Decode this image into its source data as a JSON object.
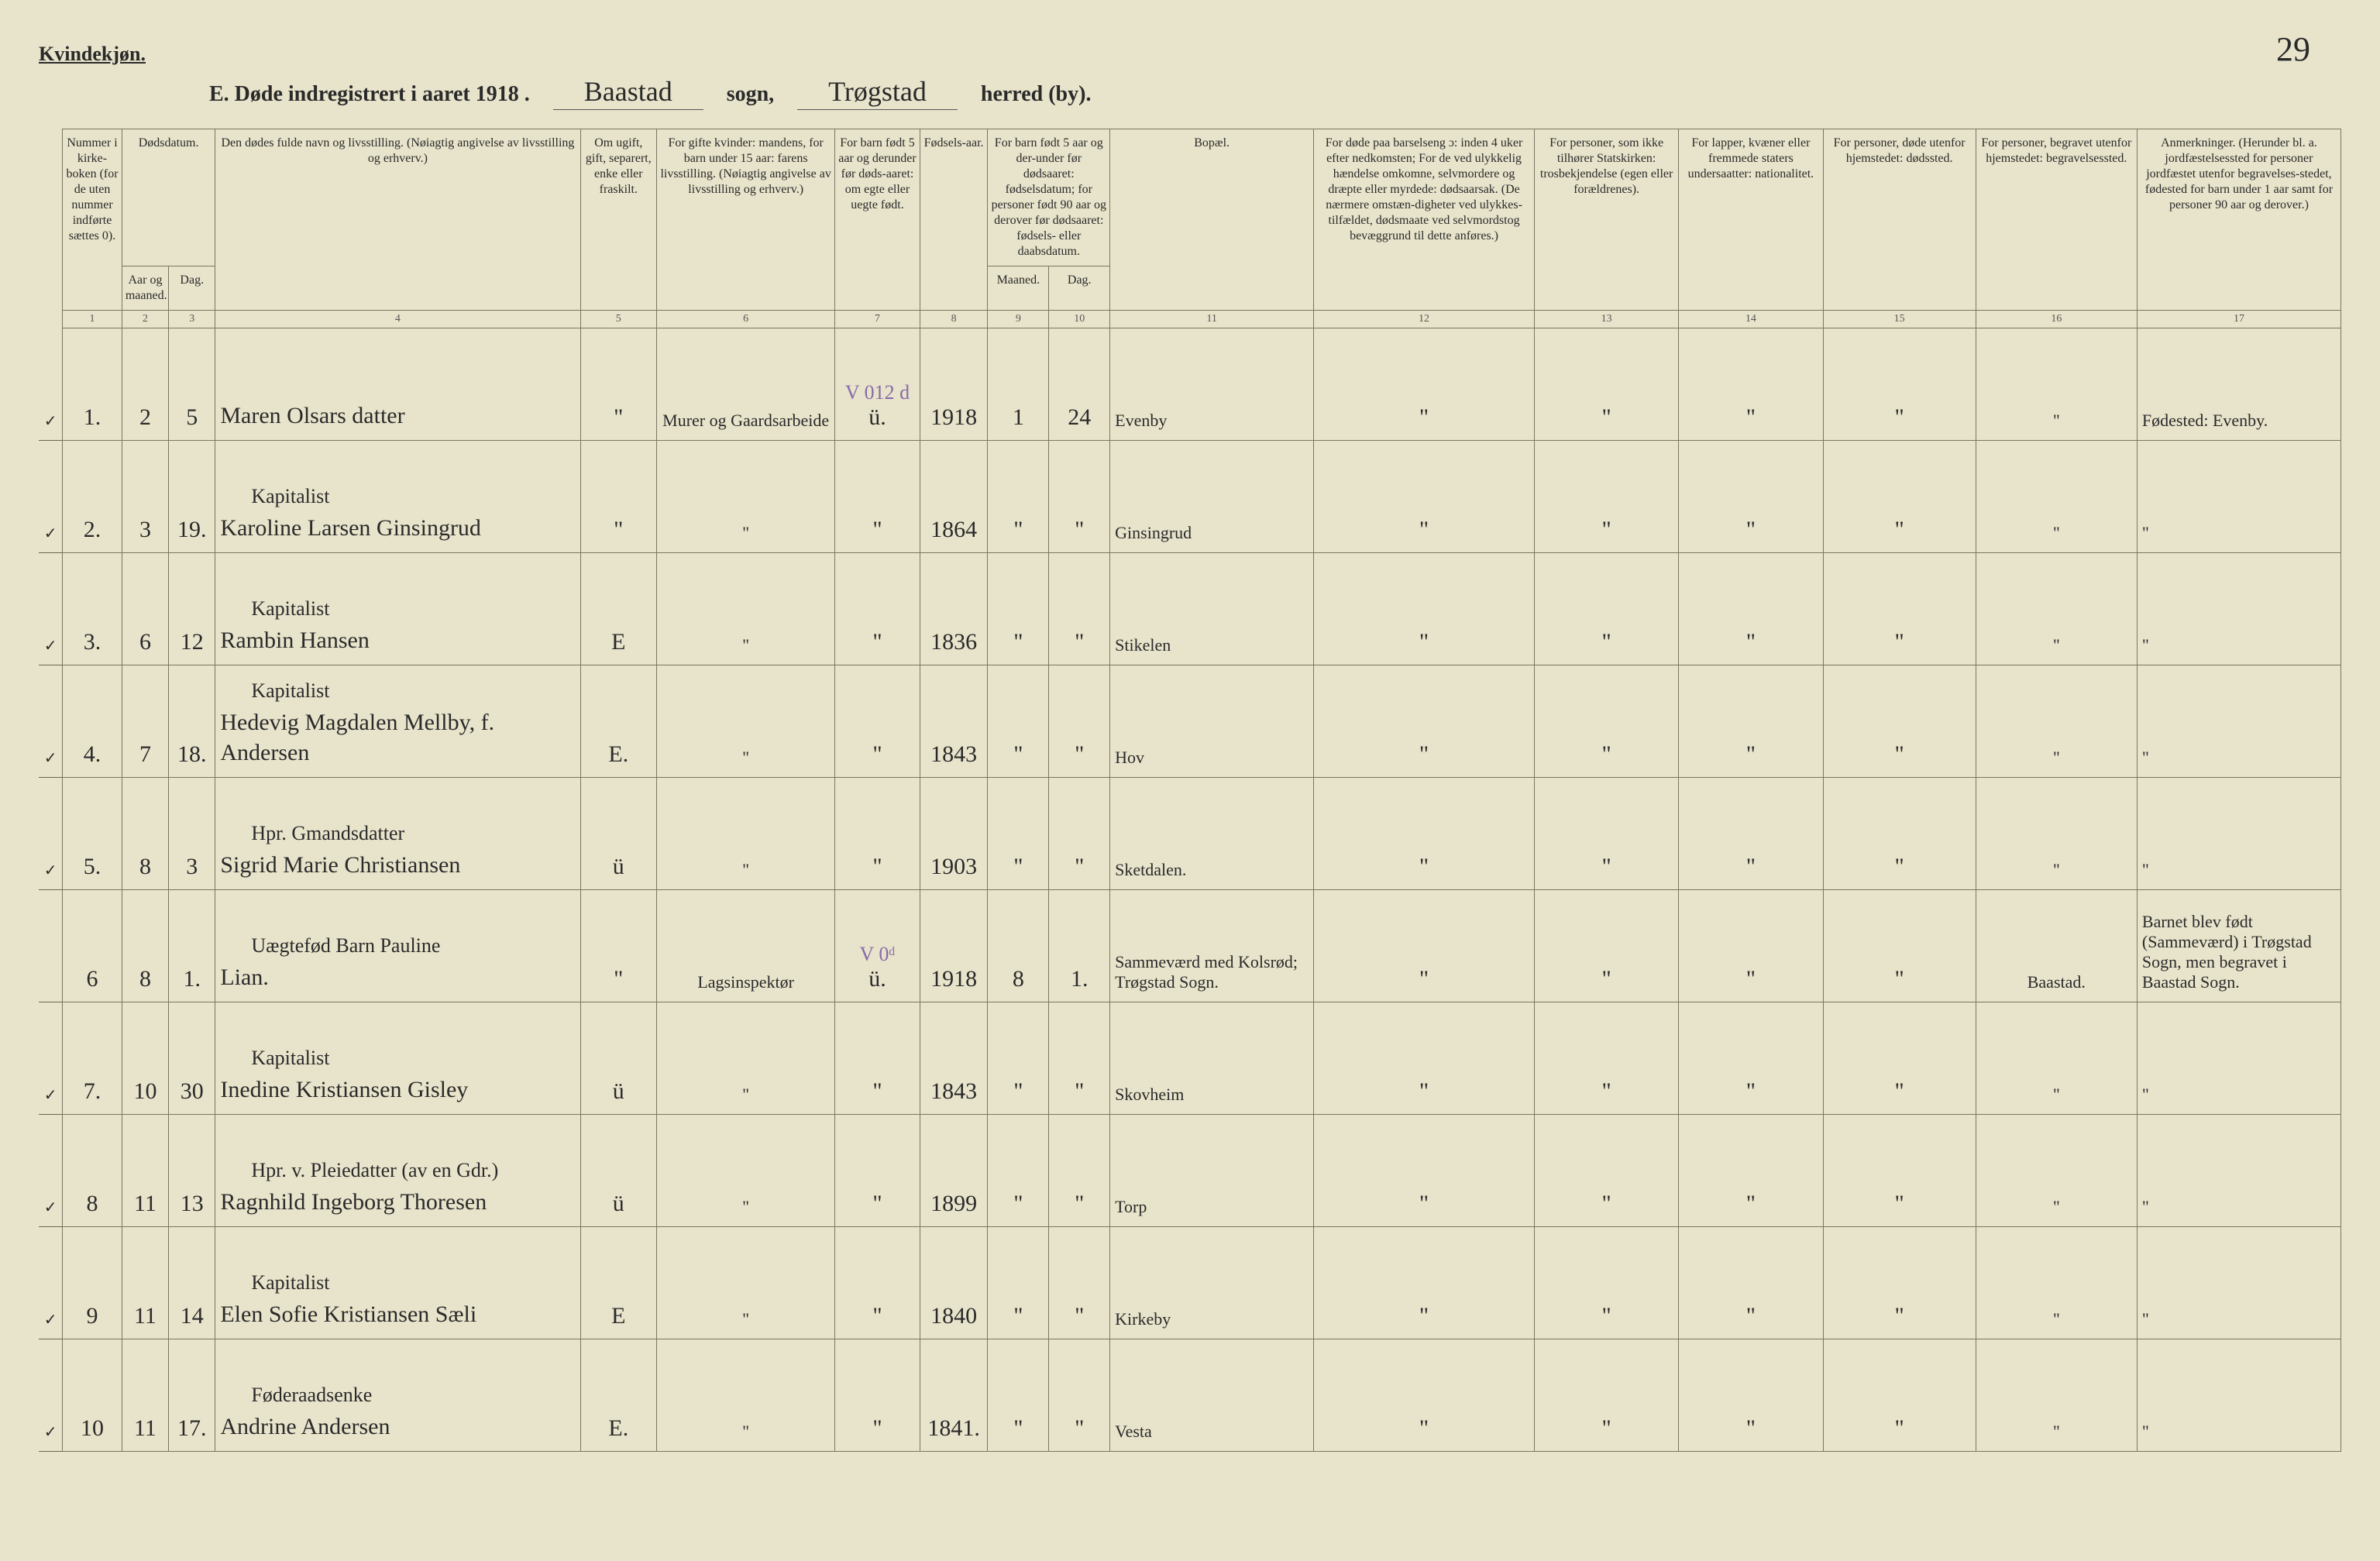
{
  "page_number": "29",
  "gender_heading": "Kvindekjøn.",
  "title": {
    "prefix": "E.  Døde indregistrert i aaret 191",
    "year_suffix": "8",
    "sogn_value": "Baastad",
    "sogn_label": "sogn,",
    "herred_value": "Trøgstad",
    "herred_label": "herred (by)."
  },
  "headers": {
    "c1": "Nummer i kirke-boken (for de uten nummer indførte sættes 0).",
    "c2_group": "Dødsdatum.",
    "c2a": "Aar og maaned.",
    "c2b": "Dag.",
    "c4": "Den dødes fulde navn og livsstilling. (Nøiagtig angivelse av livsstilling og erhverv.)",
    "c5": "Om ugift, gift, separert, enke eller fraskilt.",
    "c6": "For gifte kvinder: mandens, for barn under 15 aar: farens livsstilling. (Nøiagtig angivelse av livsstilling og erhverv.)",
    "c7": "For barn født 5 aar og derunder før døds-aaret: om egte eller uegte født.",
    "c8": "Fødsels-aar.",
    "c9_group": "For barn født 5 aar og der-under før dødsaaret: fødselsdatum; for personer født 90 aar og derover før dødsaaret: fødsels- eller daabsdatum.",
    "c9a": "Maaned.",
    "c9b": "Dag.",
    "c11": "Bopæl.",
    "c12": "For døde paa barselseng ɔ: inden 4 uker efter nedkomsten; For de ved ulykkelig hændelse omkomne, selvmordere og dræpte eller myrdede: dødsaarsak. (De nærmere omstæn-digheter ved ulykkes-tilfældet, dødsmaate ved selvmordstog bevæggrund til dette anføres.)",
    "c13": "For personer, som ikke tilhører Statskirken: trosbekjendelse (egen eller forældrenes).",
    "c14": "For lapper, kvæner eller fremmede staters undersaatter: nationalitet.",
    "c15": "For personer, døde utenfor hjemstedet: dødssted.",
    "c16": "For personer, begravet utenfor hjemstedet: begravelsessted.",
    "c17": "Anmerkninger. (Herunder bl. a. jordfæstelsessted for personer jordfæstet utenfor begravelses-stedet, fødested for barn under 1 aar samt for personer 90 aar og derover.)"
  },
  "colnums": [
    "1",
    "2",
    "3",
    "4",
    "5",
    "6",
    "7",
    "8",
    "9",
    "10",
    "11",
    "12",
    "13",
    "14",
    "15",
    "16",
    "17"
  ],
  "rows": [
    {
      "tick": "✓",
      "n": "1.",
      "m": "2",
      "d": "5",
      "occ": "",
      "name": "Maren Olsars datter",
      "ms": "\"",
      "c6": "Murer og Gaardsarbeide",
      "c7": "ü.",
      "y": "1918",
      "m9": "1",
      "d10": "24",
      "bopel": "Evenby",
      "c17": "Fødested: Evenby.",
      "purple": "V 012 d"
    },
    {
      "tick": "✓",
      "n": "2.",
      "m": "3",
      "d": "19.",
      "occ": "Kapitalist",
      "name": "Karoline Larsen Ginsingrud",
      "ms": "\"",
      "c6": "\"",
      "c7": "\"",
      "y": "1864",
      "m9": "\"",
      "d10": "\"",
      "bopel": "Ginsingrud",
      "c17": "\""
    },
    {
      "tick": "✓",
      "n": "3.",
      "m": "6",
      "d": "12",
      "occ": "Kapitalist",
      "name": "Rambin Hansen",
      "ms": "E",
      "c6": "\"",
      "c7": "\"",
      "y": "1836",
      "m9": "\"",
      "d10": "\"",
      "bopel": "Stikelen",
      "c17": "\""
    },
    {
      "tick": "✓",
      "n": "4.",
      "m": "7",
      "d": "18.",
      "occ": "Kapitalist",
      "name": "Hedevig Magdalen Mellby, f. Andersen",
      "ms": "E.",
      "c6": "\"",
      "c7": "\"",
      "y": "1843",
      "m9": "\"",
      "d10": "\"",
      "bopel": "Hov",
      "c17": "\""
    },
    {
      "tick": "✓",
      "n": "5.",
      "m": "8",
      "d": "3",
      "occ": "Hpr. Gmandsdatter",
      "name": "Sigrid Marie Christiansen",
      "ms": "ü",
      "c6": "\"",
      "c7": "\"",
      "y": "1903",
      "m9": "\"",
      "d10": "\"",
      "bopel": "Sketdalen.",
      "c17": "\""
    },
    {
      "tick": "",
      "n": "6",
      "m": "8",
      "d": "1.",
      "occ": "Uægtefød Barn Pauline",
      "name": "Lian.",
      "ms": "\"",
      "c6": "Lagsinspektør",
      "c7": "ü.",
      "y": "1918",
      "m9": "8",
      "d10": "1.",
      "bopel": "Sammeværd med Kolsrød; Trøgstad Sogn.",
      "c16": "Baastad.",
      "c17": "Barnet blev født (Sammeværd) i Trøgstad Sogn, men begravet i Baastad Sogn.",
      "purple": "V 0ᵈ"
    },
    {
      "tick": "✓",
      "n": "7.",
      "m": "10",
      "d": "30",
      "occ": "Kapitalist",
      "name": "Inedine Kristiansen Gisley",
      "ms": "ü",
      "c6": "\"",
      "c7": "\"",
      "y": "1843",
      "m9": "\"",
      "d10": "\"",
      "bopel": "Skovheim",
      "c17": "\""
    },
    {
      "tick": "✓",
      "n": "8",
      "m": "11",
      "d": "13",
      "occ": "Hpr. v. Pleiedatter (av en Gdr.)",
      "name": "Ragnhild Ingeborg Thoresen",
      "ms": "ü",
      "c6": "\"",
      "c7": "\"",
      "y": "1899",
      "m9": "\"",
      "d10": "\"",
      "bopel": "Torp",
      "c17": "\""
    },
    {
      "tick": "✓",
      "n": "9",
      "m": "11",
      "d": "14",
      "occ": "Kapitalist",
      "name": "Elen Sofie Kristiansen Sæli",
      "ms": "E",
      "c6": "\"",
      "c7": "\"",
      "y": "1840",
      "m9": "\"",
      "d10": "\"",
      "bopel": "Kirkeby",
      "c17": "\""
    },
    {
      "tick": "✓",
      "n": "10",
      "m": "11",
      "d": "17.",
      "occ": "Føderaadsenke",
      "name": "Andrine Andersen",
      "ms": "E.",
      "c6": "\"",
      "c7": "\"",
      "y": "1841.",
      "m9": "\"",
      "d10": "\"",
      "bopel": "Vesta",
      "c17": "\""
    }
  ]
}
